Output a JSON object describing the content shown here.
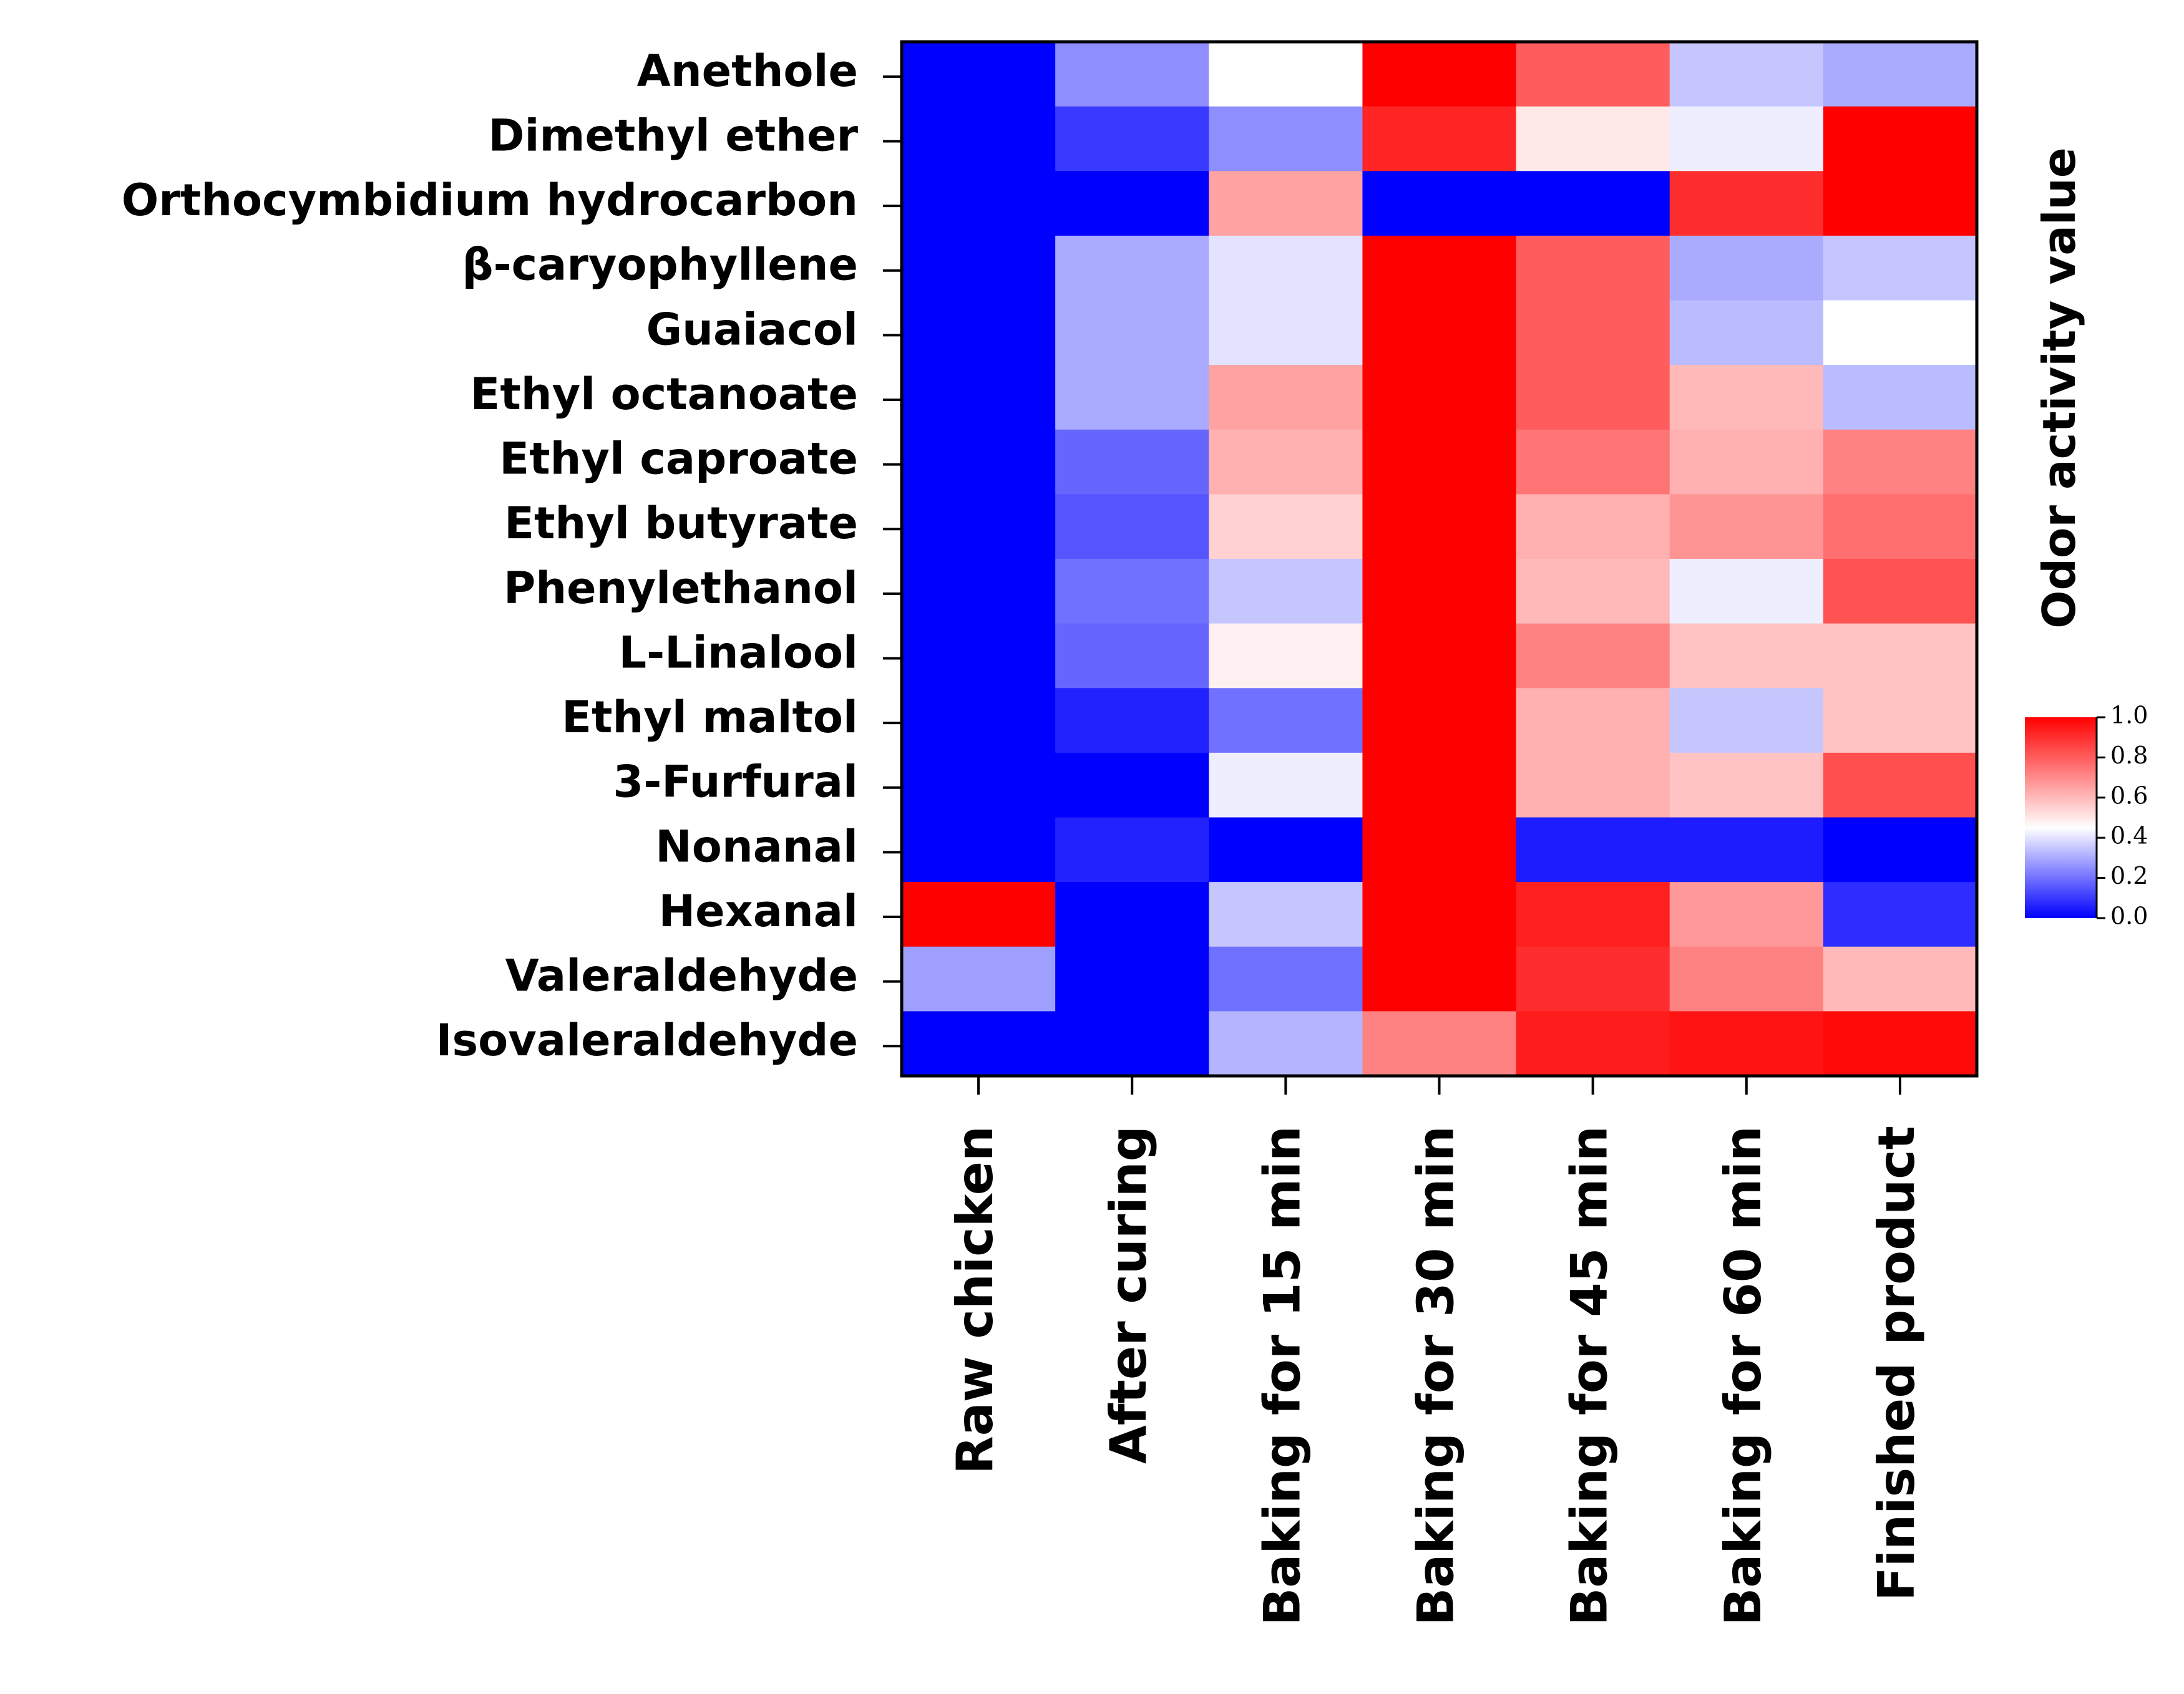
{
  "chart_data": {
    "type": "heatmap",
    "rows": [
      "Anethole",
      "Dimethyl ether",
      "Orthocymbidium hydrocarbon",
      "β-caryophyllene",
      "Guaiacol",
      "Ethyl octanoate",
      "Ethyl caproate",
      "Ethyl butyrate",
      "Phenylethanol",
      "L-Linalool",
      "Ethyl maltol",
      "3-Furfural",
      "Nonanal",
      "Hexanal",
      "Valeraldehyde",
      "Isovaleraldehyde"
    ],
    "columns": [
      "Raw chicken",
      "After curing",
      "Baking for 15 min",
      "Baking for 30 min",
      "Baking for 45 min",
      "Baking for 60 min",
      "Finished product"
    ],
    "values": [
      [
        0.0,
        0.25,
        0.45,
        1.0,
        0.8,
        0.35,
        0.3
      ],
      [
        0.0,
        0.1,
        0.25,
        0.92,
        0.5,
        0.42,
        1.0
      ],
      [
        0.0,
        0.0,
        0.65,
        0.0,
        0.0,
        0.9,
        1.0
      ],
      [
        0.0,
        0.3,
        0.4,
        1.0,
        0.8,
        0.3,
        0.35
      ],
      [
        0.0,
        0.3,
        0.4,
        1.0,
        0.8,
        0.33,
        0.45
      ],
      [
        0.0,
        0.3,
        0.65,
        1.0,
        0.8,
        0.6,
        0.33
      ],
      [
        0.0,
        0.18,
        0.62,
        1.0,
        0.75,
        0.62,
        0.72
      ],
      [
        0.0,
        0.15,
        0.55,
        1.0,
        0.62,
        0.68,
        0.76
      ],
      [
        0.0,
        0.2,
        0.35,
        1.0,
        0.6,
        0.42,
        0.82
      ],
      [
        0.0,
        0.18,
        0.48,
        1.0,
        0.72,
        0.58,
        0.58
      ],
      [
        0.0,
        0.06,
        0.2,
        1.0,
        0.62,
        0.35,
        0.58
      ],
      [
        0.0,
        0.0,
        0.42,
        1.0,
        0.62,
        0.58,
        0.83
      ],
      [
        0.0,
        0.06,
        0.0,
        1.0,
        0.05,
        0.05,
        0.0
      ],
      [
        1.0,
        0.0,
        0.35,
        1.0,
        0.93,
        0.67,
        0.08
      ],
      [
        0.28,
        0.0,
        0.2,
        1.0,
        0.9,
        0.72,
        0.6
      ],
      [
        0.0,
        0.0,
        0.32,
        0.72,
        0.94,
        0.96,
        0.98
      ]
    ],
    "colorbar": {
      "title": "Odor activity value",
      "ticks": [
        "0.0",
        "0.2",
        "0.4",
        "0.6",
        "0.8",
        "1.0"
      ],
      "tick_values": [
        0.0,
        0.2,
        0.4,
        0.6,
        0.8,
        1.0
      ],
      "range": [
        0.0,
        1.0
      ]
    },
    "colors": {
      "low": "#0000ff",
      "mid": "#ffffff",
      "high": "#ff0000",
      "border": "#000000"
    }
  }
}
